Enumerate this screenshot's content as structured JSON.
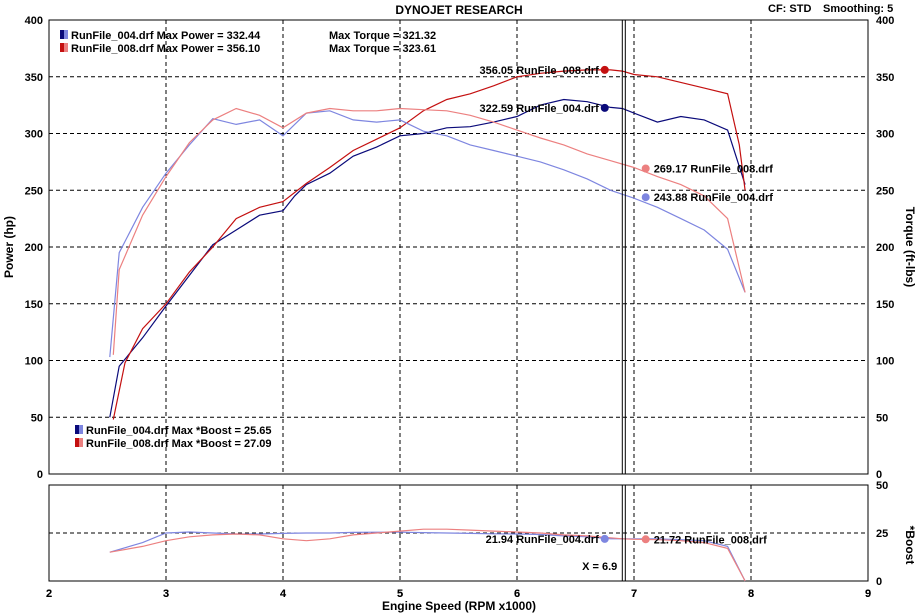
{
  "header": {
    "title": "DYNOJET RESEARCH",
    "cf_label": "CF: STD",
    "smoothing_label": "Smoothing: 5"
  },
  "colors": {
    "run004_dark": "#0a0a7a",
    "run004_light": "#7e86e0",
    "run008_dark": "#c41010",
    "run008_light": "#ec8080",
    "grid": "#000000",
    "marker_line": "#000000"
  },
  "legend_main": [
    {
      "run": "run004",
      "text": "RunFile_004.drf Max Power = 332.44",
      "torque_text": "Max Torque = 321.32"
    },
    {
      "run": "run008",
      "text": "RunFile_008.drf Max Power = 356.10",
      "torque_text": "Max Torque = 323.61"
    }
  ],
  "legend_boost": [
    {
      "run": "run004",
      "text": "RunFile_004.drf Max *Boost = 25.65"
    },
    {
      "run": "run008",
      "text": "RunFile_008.drf Max *Boost = 27.09"
    }
  ],
  "cursor": {
    "x": 6.9,
    "label": "X = 6.9"
  },
  "annotations": [
    {
      "text": "356.05 RunFile_008.drf",
      "x": 6.75,
      "y": 356.05,
      "run": "run008",
      "shade": "dark",
      "panel": "main"
    },
    {
      "text": "322.59 RunFile_004.drf",
      "x": 6.75,
      "y": 322.59,
      "run": "run004",
      "shade": "dark",
      "panel": "main"
    },
    {
      "text": "269.17 RunFile_008.drf",
      "x": 7.1,
      "y": 269.17,
      "run": "run008",
      "shade": "light",
      "panel": "main"
    },
    {
      "text": "243.88 RunFile_004.drf",
      "x": 7.1,
      "y": 243.88,
      "run": "run004",
      "shade": "light",
      "panel": "main"
    },
    {
      "text": "21.94 RunFile_004.drf",
      "x": 6.75,
      "y": 21.94,
      "run": "run004",
      "shade": "light",
      "panel": "boost"
    },
    {
      "text": "21.72 RunFile_008.drf",
      "x": 7.1,
      "y": 21.72,
      "run": "run008",
      "shade": "light",
      "panel": "boost"
    }
  ],
  "chart_data": [
    {
      "type": "line",
      "panel": "main",
      "xlabel": "Engine Speed (RPM x1000)",
      "ylabel": "Power (hp)",
      "ylabel_right": "Torque (ft-lbs)",
      "xlim": [
        2,
        9
      ],
      "ylim": [
        0,
        400
      ],
      "xticks": [
        "2",
        "3",
        "4",
        "5",
        "6",
        "7",
        "8",
        "9"
      ],
      "yticks": [
        "0",
        "50",
        "100",
        "150",
        "200",
        "250",
        "300",
        "350",
        "400"
      ],
      "grid": true,
      "series": [
        {
          "name": "RunFile_004.drf",
          "measure": "Power",
          "run": "run004",
          "shade": "dark",
          "x": [
            2.52,
            2.6,
            2.8,
            3.0,
            3.2,
            3.4,
            3.6,
            3.8,
            4.0,
            4.1,
            4.2,
            4.4,
            4.6,
            4.8,
            5.0,
            5.2,
            5.4,
            5.6,
            5.8,
            6.0,
            6.2,
            6.4,
            6.6,
            6.8,
            6.9,
            7.0,
            7.2,
            7.4,
            7.6,
            7.8,
            7.95
          ],
          "y": [
            50,
            95,
            120,
            148,
            175,
            202,
            215,
            228,
            232,
            245,
            255,
            265,
            280,
            288,
            298,
            300,
            305,
            306,
            310,
            315,
            325,
            330,
            328,
            323,
            322,
            318,
            310,
            315,
            312,
            303,
            255
          ]
        },
        {
          "name": "RunFile_008.drf",
          "measure": "Power",
          "run": "run008",
          "shade": "dark",
          "x": [
            2.55,
            2.65,
            2.8,
            3.0,
            3.2,
            3.4,
            3.6,
            3.8,
            4.0,
            4.2,
            4.4,
            4.6,
            4.8,
            5.0,
            5.2,
            5.4,
            5.6,
            5.8,
            6.0,
            6.2,
            6.4,
            6.6,
            6.8,
            6.9,
            7.0,
            7.2,
            7.4,
            7.6,
            7.8,
            7.9,
            7.95
          ],
          "y": [
            48,
            98,
            128,
            150,
            178,
            200,
            225,
            235,
            240,
            256,
            270,
            285,
            295,
            305,
            320,
            330,
            335,
            342,
            350,
            353,
            355,
            356,
            356,
            355,
            352,
            350,
            345,
            340,
            335,
            290,
            250
          ]
        },
        {
          "name": "RunFile_004.drf",
          "measure": "Torque",
          "run": "run004",
          "shade": "light",
          "x": [
            2.52,
            2.6,
            2.8,
            3.0,
            3.2,
            3.4,
            3.6,
            3.8,
            4.0,
            4.2,
            4.4,
            4.6,
            4.8,
            5.0,
            5.2,
            5.4,
            5.6,
            5.8,
            6.0,
            6.2,
            6.4,
            6.6,
            6.8,
            7.0,
            7.2,
            7.4,
            7.6,
            7.8,
            7.95
          ],
          "y": [
            103,
            195,
            235,
            265,
            290,
            313,
            308,
            312,
            298,
            318,
            320,
            312,
            310,
            312,
            302,
            298,
            290,
            285,
            280,
            275,
            268,
            260,
            250,
            243,
            235,
            225,
            215,
            198,
            160
          ]
        },
        {
          "name": "RunFile_008.drf",
          "measure": "Torque",
          "run": "run008",
          "shade": "light",
          "x": [
            2.55,
            2.6,
            2.8,
            3.0,
            3.2,
            3.4,
            3.6,
            3.8,
            4.0,
            4.2,
            4.4,
            4.6,
            4.8,
            5.0,
            5.2,
            5.4,
            5.6,
            5.8,
            6.0,
            6.2,
            6.4,
            6.6,
            6.8,
            7.0,
            7.2,
            7.4,
            7.6,
            7.8,
            7.95
          ],
          "y": [
            105,
            180,
            228,
            262,
            292,
            312,
            322,
            316,
            305,
            318,
            322,
            320,
            320,
            322,
            321,
            320,
            316,
            310,
            303,
            296,
            290,
            282,
            276,
            270,
            262,
            255,
            245,
            225,
            160
          ]
        }
      ]
    },
    {
      "type": "line",
      "panel": "boost",
      "ylabel_right": "*Boost",
      "xlim": [
        2,
        9
      ],
      "ylim": [
        0,
        50
      ],
      "yticks": [
        "0",
        "25",
        "50"
      ],
      "grid": true,
      "series": [
        {
          "name": "RunFile_004.drf",
          "measure": "*Boost",
          "run": "run004",
          "shade": "light",
          "x": [
            2.52,
            2.8,
            3.0,
            3.2,
            3.4,
            3.6,
            3.8,
            4.0,
            4.2,
            4.4,
            4.6,
            4.8,
            5.0,
            5.2,
            5.4,
            5.6,
            5.8,
            6.0,
            6.2,
            6.4,
            6.6,
            6.8,
            7.0,
            7.2,
            7.4,
            7.6,
            7.8,
            7.95
          ],
          "y": [
            15,
            20,
            25,
            25.5,
            25,
            24.5,
            24.5,
            24.8,
            25,
            25,
            25.3,
            25.4,
            25.4,
            25.2,
            25,
            24.8,
            24.6,
            24.5,
            24.2,
            23.5,
            23,
            22,
            22,
            22,
            21.5,
            21,
            18,
            0
          ]
        },
        {
          "name": "RunFile_008.drf",
          "measure": "*Boost",
          "run": "run008",
          "shade": "light",
          "x": [
            2.52,
            2.8,
            3.0,
            3.2,
            3.4,
            3.6,
            3.8,
            4.0,
            4.2,
            4.4,
            4.6,
            4.8,
            5.0,
            5.2,
            5.4,
            5.6,
            5.8,
            6.0,
            6.2,
            6.4,
            6.6,
            6.8,
            6.9,
            7.0,
            7.2,
            7.4,
            7.6,
            7.8,
            7.95
          ],
          "y": [
            15,
            18,
            21,
            23,
            24,
            24.5,
            24,
            22,
            21,
            22,
            24,
            25,
            26,
            27,
            27,
            26.5,
            26,
            25.5,
            25,
            24,
            23.5,
            22.5,
            22,
            21.7,
            21.5,
            21,
            20,
            17,
            0
          ]
        }
      ]
    }
  ]
}
